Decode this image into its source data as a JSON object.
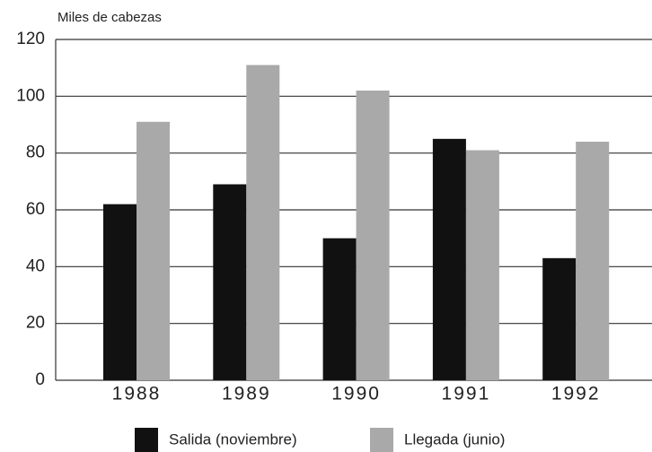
{
  "chart_data": {
    "type": "bar",
    "y_label": "Miles de cabezas",
    "categories": [
      "1988",
      "1989",
      "1990",
      "1991",
      "1992"
    ],
    "series": [
      {
        "name": "Salida (noviembre)",
        "color": "#111111",
        "values": [
          62,
          69,
          50,
          85,
          43
        ]
      },
      {
        "name": "Llegada (junio)",
        "color": "#a9a9a9",
        "values": [
          91,
          111,
          102,
          81,
          84
        ]
      }
    ],
    "ylim": [
      0,
      120
    ],
    "yticks": [
      0,
      20,
      40,
      60,
      80,
      100,
      120
    ],
    "grid": true
  }
}
